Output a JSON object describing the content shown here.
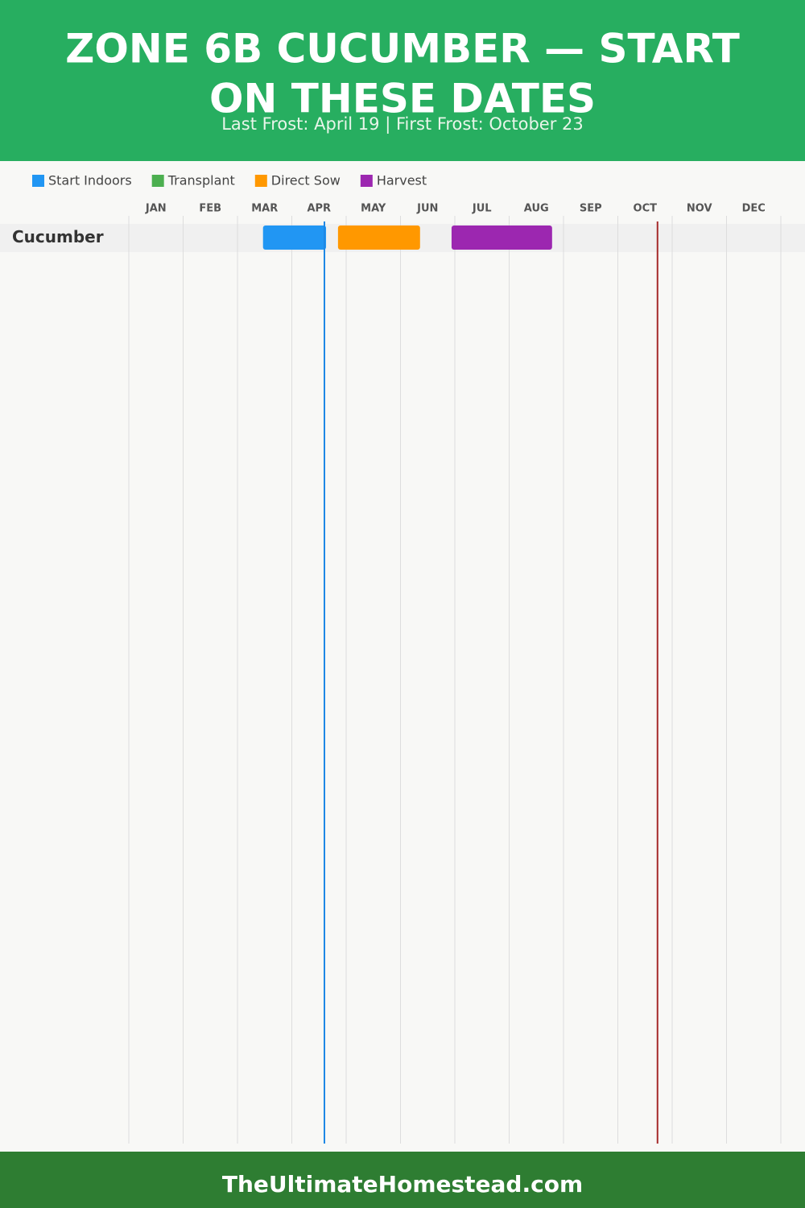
{
  "header": {
    "title_lines": [
      "ZONE 6B CUCUMBER — START",
      "ON THESE DATES"
    ],
    "subtitle": "Last Frost: April 19 | First Frost: October 23"
  },
  "chart_data": {
    "type": "gantt",
    "months": [
      "JAN",
      "FEB",
      "MAR",
      "APR",
      "MAY",
      "JUN",
      "JUL",
      "AUG",
      "SEP",
      "OCT",
      "NOV",
      "DEC"
    ],
    "categories": [
      "Cucumber"
    ],
    "xlim": [
      0,
      12
    ],
    "series": [
      {
        "name": "Start Indoors",
        "color": "#2196f3",
        "ranges": [
          [
            2.47,
            3.63
          ]
        ]
      },
      {
        "name": "Transplant",
        "color": "#4caf50",
        "ranges": [
          null
        ]
      },
      {
        "name": "Direct Sow",
        "color": "#ff9800",
        "ranges": [
          [
            3.85,
            5.36
          ]
        ]
      },
      {
        "name": "Harvest",
        "color": "#9c27b0",
        "ranges": [
          [
            5.94,
            7.79
          ]
        ]
      }
    ],
    "markers": [
      {
        "value": 3.6,
        "color": "#1e88e5"
      },
      {
        "value": 9.73,
        "color": "#a52a2a"
      }
    ]
  },
  "footer": {
    "text": "TheUltimateHomestead.com"
  }
}
